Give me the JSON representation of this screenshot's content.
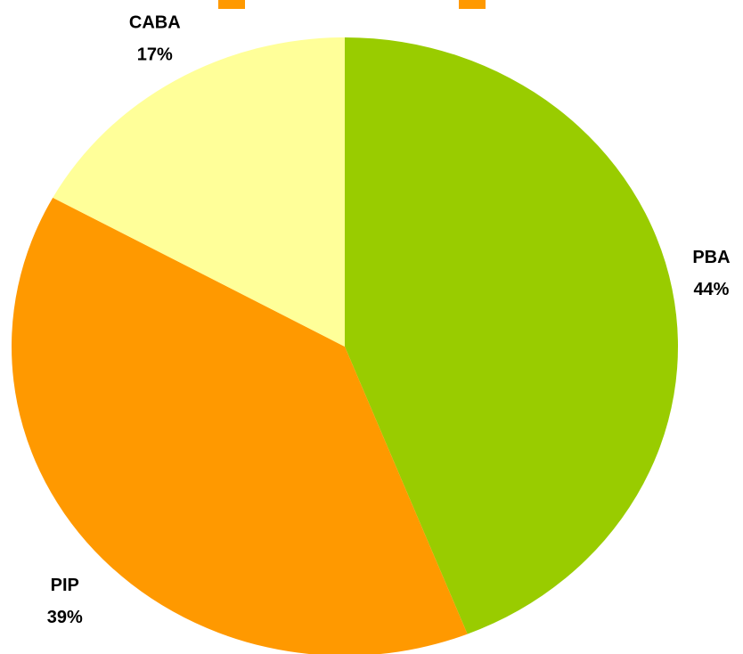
{
  "chart_data": {
    "type": "pie",
    "categories": [
      "PBA",
      "PIP",
      "CABA"
    ],
    "values": [
      44,
      39,
      17
    ],
    "value_labels": [
      "44%",
      "39%",
      "17%"
    ],
    "colors": [
      "#99cc00",
      "#ff9900",
      "#ffff99"
    ]
  }
}
